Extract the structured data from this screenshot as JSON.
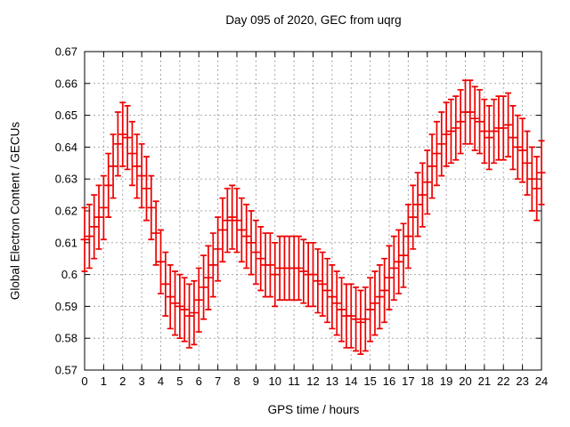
{
  "chart_data": {
    "type": "scatter",
    "style": "yerrorbars",
    "title": "Day 095 of 2020, GEC from uqrg",
    "xlabel": "GPS time / hours",
    "ylabel": "Global Electron Content / GECUs",
    "xlim": [
      0,
      24
    ],
    "ylim": [
      0.57,
      0.67
    ],
    "grid": true,
    "legend": "none",
    "xticks": [
      "0",
      "1",
      "2",
      "3",
      "4",
      "5",
      "6",
      "7",
      "8",
      "9",
      "10",
      "11",
      "12",
      "13",
      "14",
      "15",
      "16",
      "17",
      "18",
      "19",
      "20",
      "21",
      "22",
      "23",
      "24"
    ],
    "yticks": [
      "0.57",
      "0.58",
      "0.59",
      "0.6",
      "0.61",
      "0.62",
      "0.63",
      "0.64",
      "0.65",
      "0.66",
      "0.67"
    ],
    "series_name": "GEC",
    "series_color": "#ee0000",
    "grid_color": "#a8a8a8",
    "axis_color": "#000000",
    "background": "#ffffff",
    "yerr": 0.01,
    "x": [
      0,
      0.25,
      0.5,
      0.75,
      1,
      1.25,
      1.5,
      1.75,
      2,
      2.25,
      2.5,
      2.75,
      3,
      3.25,
      3.5,
      3.75,
      4,
      4.25,
      4.5,
      4.75,
      5,
      5.25,
      5.5,
      5.75,
      6,
      6.25,
      6.5,
      6.75,
      7,
      7.25,
      7.5,
      7.75,
      8,
      8.25,
      8.5,
      8.75,
      9,
      9.25,
      9.5,
      9.75,
      10,
      10.25,
      10.5,
      10.75,
      11,
      11.25,
      11.5,
      11.75,
      12,
      12.25,
      12.5,
      12.75,
      13,
      13.25,
      13.5,
      13.75,
      14,
      14.25,
      14.5,
      14.75,
      15,
      15.25,
      15.5,
      15.75,
      16,
      16.25,
      16.5,
      16.75,
      17,
      17.25,
      17.5,
      17.75,
      18,
      18.25,
      18.5,
      18.75,
      19,
      19.25,
      19.5,
      19.75,
      20,
      20.25,
      20.5,
      20.75,
      21,
      21.25,
      21.5,
      21.75,
      22,
      22.25,
      22.5,
      22.75,
      23,
      23.25,
      23.5,
      23.75,
      24
    ],
    "y": [
      0.611,
      0.612,
      0.615,
      0.618,
      0.621,
      0.628,
      0.634,
      0.641,
      0.644,
      0.643,
      0.638,
      0.634,
      0.631,
      0.627,
      0.621,
      0.613,
      0.604,
      0.597,
      0.593,
      0.591,
      0.59,
      0.589,
      0.587,
      0.588,
      0.592,
      0.596,
      0.599,
      0.603,
      0.608,
      0.614,
      0.617,
      0.618,
      0.617,
      0.614,
      0.612,
      0.61,
      0.607,
      0.605,
      0.603,
      0.603,
      0.6,
      0.602,
      0.602,
      0.602,
      0.602,
      0.602,
      0.601,
      0.6,
      0.6,
      0.598,
      0.597,
      0.595,
      0.593,
      0.591,
      0.589,
      0.587,
      0.587,
      0.586,
      0.585,
      0.586,
      0.589,
      0.591,
      0.593,
      0.595,
      0.599,
      0.602,
      0.604,
      0.606,
      0.612,
      0.618,
      0.622,
      0.625,
      0.629,
      0.634,
      0.638,
      0.641,
      0.644,
      0.645,
      0.646,
      0.648,
      0.651,
      0.651,
      0.649,
      0.648,
      0.645,
      0.643,
      0.645,
      0.646,
      0.646,
      0.647,
      0.643,
      0.64,
      0.639,
      0.635,
      0.63,
      0.627,
      0.632
    ]
  }
}
